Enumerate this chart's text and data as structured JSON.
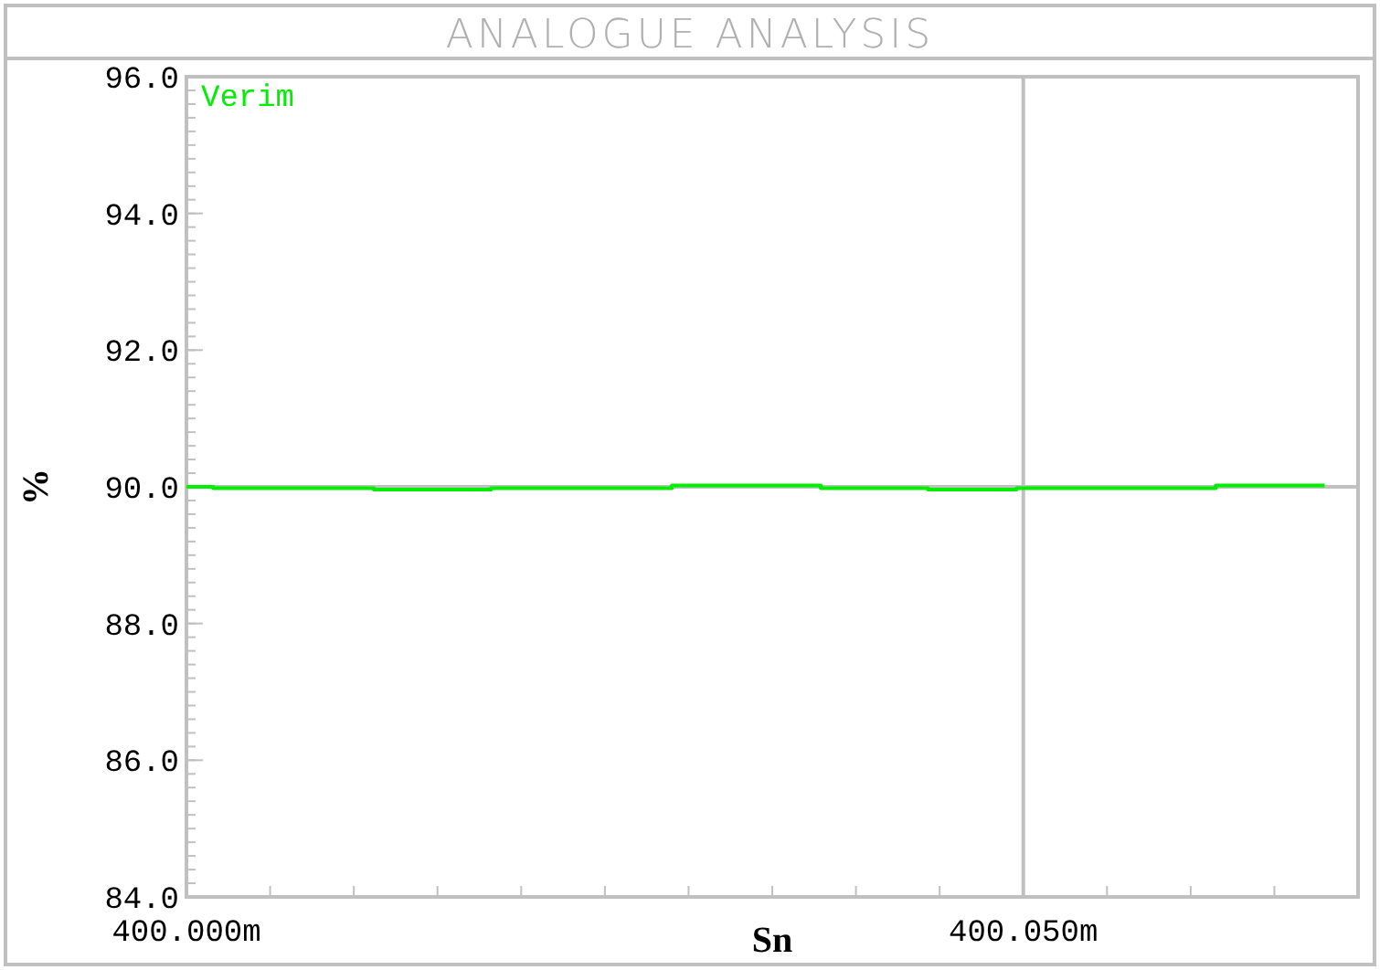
{
  "chart_data": {
    "type": "step",
    "title": "ANALOGUE ANALYSIS",
    "xlabel": "Sn",
    "ylabel": "%",
    "xlim": [
      400.0,
      400.07
    ],
    "ylim": [
      84,
      96
    ],
    "xticks": [
      {
        "value": 400.0,
        "label": "400.000m"
      },
      {
        "value": 400.005,
        "label": null
      },
      {
        "value": 400.01,
        "label": null
      },
      {
        "value": 400.015,
        "label": null
      },
      {
        "value": 400.02,
        "label": null
      },
      {
        "value": 400.025,
        "label": null
      },
      {
        "value": 400.03,
        "label": null
      },
      {
        "value": 400.035,
        "label": null
      },
      {
        "value": 400.04,
        "label": null
      },
      {
        "value": 400.045,
        "label": null
      },
      {
        "value": 400.05,
        "label": "400.050m"
      },
      {
        "value": 400.055,
        "label": null
      },
      {
        "value": 400.06,
        "label": null
      },
      {
        "value": 400.065,
        "label": null
      }
    ],
    "yticks": [
      {
        "value": 84,
        "label": "84.0"
      },
      {
        "value": 86,
        "label": "86.0"
      },
      {
        "value": 88,
        "label": "88.0"
      },
      {
        "value": 90,
        "label": "90.0"
      },
      {
        "value": 92,
        "label": "92.0"
      },
      {
        "value": 94,
        "label": "94.0"
      },
      {
        "value": 96,
        "label": "96.0"
      }
    ],
    "legend": "top left",
    "grid": false,
    "ref_lines": [
      {
        "axis": "y",
        "value": 90,
        "color": "#c0c0c0"
      },
      {
        "axis": "x",
        "value": 400.05,
        "color": "#c0c0c0"
      }
    ],
    "series": [
      {
        "name": "Verim",
        "color": "#00ee00",
        "x": [
          400.0,
          400.0016,
          400.0112,
          400.0182,
          400.029,
          400.0379,
          400.0443,
          400.0496,
          400.0615,
          400.068
        ],
        "values": [
          90.0,
          89.98,
          89.96,
          89.98,
          90.02,
          89.98,
          89.96,
          89.98,
          90.02,
          90.02
        ]
      }
    ]
  }
}
